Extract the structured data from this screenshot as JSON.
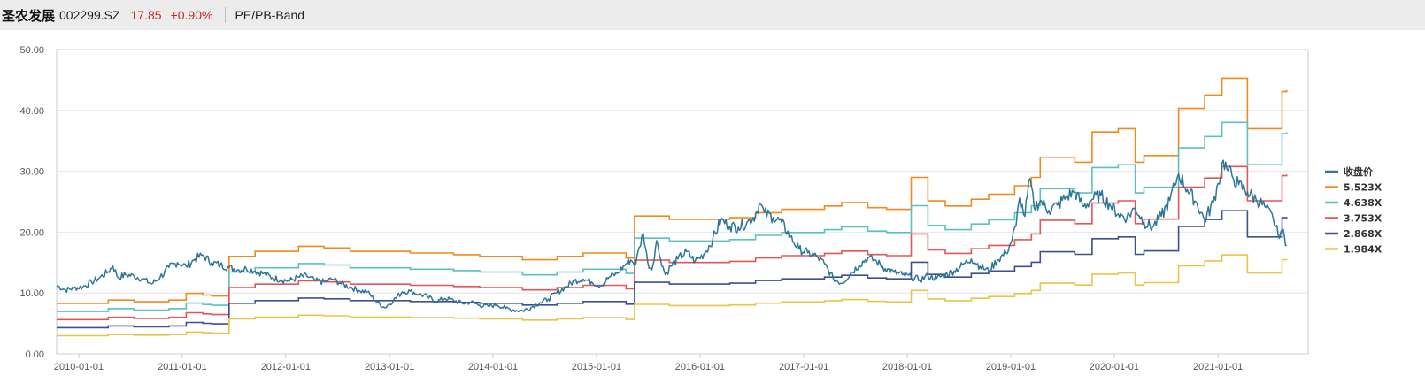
{
  "header": {
    "name": "圣农发展",
    "code": "002299.SZ",
    "price": "17.85",
    "change": "+0.90%",
    "band_label": "PE/PB-Band"
  },
  "colors": {
    "close": "#2e7697",
    "band_5523": "#f08a1c",
    "band_4638": "#5bc0be",
    "band_3753": "#e15759",
    "band_2868": "#3f4f8f",
    "band_1984": "#e8c547"
  },
  "chart_data": {
    "type": "line",
    "ylim": [
      0,
      50
    ],
    "yticks": [
      "0.00",
      "10.00",
      "20.00",
      "30.00",
      "40.00",
      "50.00"
    ],
    "xlim": [
      "2009-10-15",
      "2021-11-15"
    ],
    "xticks": [
      "2010-01-01",
      "2011-01-01",
      "2012-01-01",
      "2013-01-01",
      "2014-01-01",
      "2015-01-01",
      "2016-01-01",
      "2017-01-01",
      "2018-01-01",
      "2019-01-01",
      "2020-01-01",
      "2021-01-01"
    ],
    "legend_position": "right",
    "grid": "horizontal",
    "close_series": {
      "name": "收盘价",
      "points": [
        [
          "2009-10-15",
          11.2
        ],
        [
          "2009-11-15",
          10.5
        ],
        [
          "2009-12-15",
          10.8
        ],
        [
          "2010-01-15",
          11.0
        ],
        [
          "2010-02-15",
          11.8
        ],
        [
          "2010-03-15",
          12.5
        ],
        [
          "2010-04-15",
          13.5
        ],
        [
          "2010-05-01",
          14.5
        ],
        [
          "2010-05-20",
          12.5
        ],
        [
          "2010-06-15",
          13.0
        ],
        [
          "2010-07-15",
          12.8
        ],
        [
          "2010-08-15",
          12.3
        ],
        [
          "2010-09-15",
          11.5
        ],
        [
          "2010-10-15",
          12.6
        ],
        [
          "2010-11-15",
          14.2
        ],
        [
          "2010-12-15",
          15.0
        ],
        [
          "2011-01-15",
          14.4
        ],
        [
          "2011-02-15",
          15.6
        ],
        [
          "2011-03-15",
          16.2
        ],
        [
          "2011-04-15",
          15.0
        ],
        [
          "2011-05-15",
          14.6
        ],
        [
          "2011-06-15",
          14.2
        ],
        [
          "2011-07-15",
          13.8
        ],
        [
          "2011-08-15",
          14.0
        ],
        [
          "2011-09-15",
          13.6
        ],
        [
          "2011-10-15",
          13.2
        ],
        [
          "2011-11-15",
          12.5
        ],
        [
          "2011-12-15",
          12.2
        ],
        [
          "2012-01-15",
          12.0
        ],
        [
          "2012-02-15",
          12.6
        ],
        [
          "2012-03-15",
          12.8
        ],
        [
          "2012-04-15",
          12.0
        ],
        [
          "2012-05-15",
          11.8
        ],
        [
          "2012-06-15",
          12.3
        ],
        [
          "2012-07-15",
          11.5
        ],
        [
          "2012-08-15",
          11.0
        ],
        [
          "2012-09-15",
          10.4
        ],
        [
          "2012-10-15",
          10.2
        ],
        [
          "2012-11-15",
          8.6
        ],
        [
          "2012-12-15",
          7.6
        ],
        [
          "2013-01-15",
          8.8
        ],
        [
          "2013-02-15",
          10.2
        ],
        [
          "2013-03-15",
          10.3
        ],
        [
          "2013-04-15",
          9.8
        ],
        [
          "2013-05-15",
          9.4
        ],
        [
          "2013-06-15",
          8.6
        ],
        [
          "2013-07-15",
          9.1
        ],
        [
          "2013-08-15",
          8.8
        ],
        [
          "2013-09-15",
          8.3
        ],
        [
          "2013-10-15",
          8.5
        ],
        [
          "2013-11-15",
          8.0
        ],
        [
          "2013-12-15",
          7.8
        ],
        [
          "2014-01-15",
          8.1
        ],
        [
          "2014-02-15",
          7.5
        ],
        [
          "2014-03-15",
          7.2
        ],
        [
          "2014-04-15",
          7.1
        ],
        [
          "2014-05-15",
          7.6
        ],
        [
          "2014-06-15",
          8.4
        ],
        [
          "2014-07-15",
          9.0
        ],
        [
          "2014-08-15",
          10.1
        ],
        [
          "2014-09-15",
          11.0
        ],
        [
          "2014-10-15",
          12.0
        ],
        [
          "2014-11-15",
          12.3
        ],
        [
          "2014-12-15",
          11.8
        ],
        [
          "2015-01-15",
          11.2
        ],
        [
          "2015-02-15",
          12.6
        ],
        [
          "2015-03-15",
          13.2
        ],
        [
          "2015-04-15",
          14.8
        ],
        [
          "2015-05-01",
          15.4
        ],
        [
          "2015-05-20",
          14.8
        ],
        [
          "2015-06-01",
          17.5
        ],
        [
          "2015-06-15",
          19.8
        ],
        [
          "2015-07-01",
          15.0
        ],
        [
          "2015-07-15",
          13.8
        ],
        [
          "2015-08-01",
          18.6
        ],
        [
          "2015-08-15",
          15.6
        ],
        [
          "2015-09-01",
          13.0
        ],
        [
          "2015-09-20",
          14.4
        ],
        [
          "2015-10-15",
          15.6
        ],
        [
          "2015-11-15",
          16.8
        ],
        [
          "2015-12-15",
          15.2
        ],
        [
          "2016-01-15",
          16.4
        ],
        [
          "2016-02-15",
          18.8
        ],
        [
          "2016-03-15",
          22.0
        ],
        [
          "2016-04-15",
          21.0
        ],
        [
          "2016-05-15",
          20.8
        ],
        [
          "2016-06-15",
          21.6
        ],
        [
          "2016-07-15",
          22.8
        ],
        [
          "2016-07-28",
          24.8
        ],
        [
          "2016-08-15",
          23.2
        ],
        [
          "2016-09-15",
          22.4
        ],
        [
          "2016-10-15",
          21.6
        ],
        [
          "2016-11-15",
          19.2
        ],
        [
          "2016-12-15",
          17.2
        ],
        [
          "2017-01-15",
          16.6
        ],
        [
          "2017-02-15",
          16.0
        ],
        [
          "2017-03-15",
          14.8
        ],
        [
          "2017-04-15",
          12.4
        ],
        [
          "2017-05-15",
          11.6
        ],
        [
          "2017-06-15",
          13.2
        ],
        [
          "2017-07-15",
          14.6
        ],
        [
          "2017-08-15",
          15.8
        ],
        [
          "2017-09-15",
          15.2
        ],
        [
          "2017-10-15",
          14.0
        ],
        [
          "2017-11-15",
          13.4
        ],
        [
          "2017-12-15",
          13.0
        ],
        [
          "2018-01-15",
          12.6
        ],
        [
          "2018-02-15",
          12.2
        ],
        [
          "2018-03-15",
          12.8
        ],
        [
          "2018-04-15",
          12.4
        ],
        [
          "2018-05-15",
          13.0
        ],
        [
          "2018-06-15",
          13.6
        ],
        [
          "2018-07-15",
          14.6
        ],
        [
          "2018-08-15",
          15.6
        ],
        [
          "2018-09-15",
          14.4
        ],
        [
          "2018-10-15",
          13.6
        ],
        [
          "2018-11-15",
          15.4
        ],
        [
          "2018-12-15",
          16.6
        ],
        [
          "2019-01-01",
          18.2
        ],
        [
          "2019-01-20",
          21.0
        ],
        [
          "2019-02-01",
          25.6
        ],
        [
          "2019-02-20",
          22.6
        ],
        [
          "2019-03-10",
          28.8
        ],
        [
          "2019-03-25",
          24.0
        ],
        [
          "2019-04-15",
          25.2
        ],
        [
          "2019-05-15",
          23.6
        ],
        [
          "2019-06-15",
          24.4
        ],
        [
          "2019-07-15",
          25.8
        ],
        [
          "2019-08-15",
          26.6
        ],
        [
          "2019-09-15",
          24.2
        ],
        [
          "2019-10-15",
          25.4
        ],
        [
          "2019-11-15",
          26.0
        ],
        [
          "2019-12-15",
          24.6
        ],
        [
          "2020-01-15",
          23.0
        ],
        [
          "2020-02-15",
          22.4
        ],
        [
          "2020-03-15",
          24.0
        ],
        [
          "2020-04-15",
          21.6
        ],
        [
          "2020-05-15",
          20.8
        ],
        [
          "2020-06-15",
          22.6
        ],
        [
          "2020-07-15",
          25.2
        ],
        [
          "2020-08-01",
          27.6
        ],
        [
          "2020-08-15",
          29.6
        ],
        [
          "2020-09-15",
          27.0
        ],
        [
          "2020-10-15",
          25.0
        ],
        [
          "2020-11-15",
          22.0
        ],
        [
          "2020-12-15",
          24.8
        ],
        [
          "2021-01-01",
          28.0
        ],
        [
          "2021-01-20",
          31.8
        ],
        [
          "2021-02-01",
          30.4
        ],
        [
          "2021-02-20",
          29.2
        ],
        [
          "2021-03-15",
          27.8
        ],
        [
          "2021-04-15",
          26.6
        ],
        [
          "2021-05-15",
          25.4
        ],
        [
          "2021-06-15",
          24.2
        ],
        [
          "2021-07-15",
          22.2
        ],
        [
          "2021-08-01",
          19.6
        ],
        [
          "2021-08-15",
          20.4
        ],
        [
          "2021-08-31",
          17.85
        ]
      ]
    },
    "band_base_pe": {
      "breakpoints": [
        "2009-10-15",
        "2010-04-15",
        "2010-07-15",
        "2010-11-15",
        "2011-01-15",
        "2011-03-15",
        "2011-04-15",
        "2011-06-15",
        "2011-09-15",
        "2012-02-15",
        "2012-05-15",
        "2012-08-15",
        "2013-03-15",
        "2013-08-15",
        "2013-11-15",
        "2014-04-15",
        "2014-08-15",
        "2014-11-15",
        "2015-04-15",
        "2015-05-15",
        "2015-09-15",
        "2016-04-15",
        "2016-07-15",
        "2016-10-15",
        "2017-03-15",
        "2017-05-15",
        "2017-08-15",
        "2017-10-20",
        "2018-01-15",
        "2018-03-15",
        "2018-05-15",
        "2018-08-15",
        "2018-10-15",
        "2019-01-15",
        "2019-03-15",
        "2019-04-15",
        "2019-08-15",
        "2019-10-15",
        "2020-01-15",
        "2020-03-15",
        "2020-04-15",
        "2020-08-15",
        "2020-11-15",
        "2021-01-15",
        "2021-04-15",
        "2021-08-15"
      ],
      "values": [
        1.5,
        1.6,
        1.55,
        1.6,
        1.8,
        1.75,
        1.72,
        2.9,
        3.05,
        3.2,
        3.15,
        3.05,
        3.0,
        2.95,
        2.9,
        2.8,
        2.9,
        3.0,
        2.85,
        4.1,
        4.0,
        4.05,
        4.2,
        4.3,
        4.4,
        4.5,
        4.35,
        4.3,
        5.25,
        4.55,
        4.4,
        4.6,
        4.75,
        5.0,
        5.25,
        5.85,
        5.7,
        6.6,
        6.7,
        5.7,
        5.9,
        7.3,
        7.7,
        8.2,
        6.7,
        7.8
      ],
      "final_date": "2021-08-31",
      "final_value": 7.85
    },
    "series": [
      {
        "name": "5.523X",
        "multiple": 5.523
      },
      {
        "name": "4.638X",
        "multiple": 4.638
      },
      {
        "name": "3.753X",
        "multiple": 3.753
      },
      {
        "name": "2.868X",
        "multiple": 2.868
      },
      {
        "name": "1.984X",
        "multiple": 1.984
      }
    ],
    "legend": [
      "收盘价",
      "5.523X",
      "4.638X",
      "3.753X",
      "2.868X",
      "1.984X"
    ]
  }
}
